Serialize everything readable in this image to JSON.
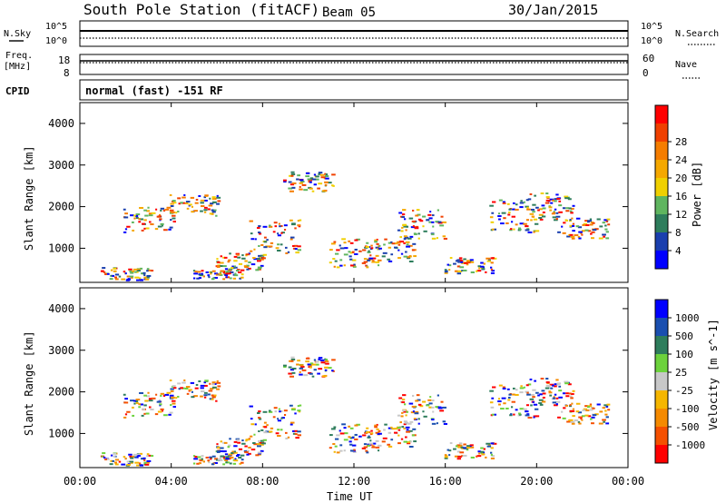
{
  "header": {
    "station": "South Pole Station (fitACF)",
    "beam": "Beam 05",
    "date": "30/Jan/2015"
  },
  "left_labels": {
    "nsky": "N.Sky",
    "freq_line1": "Freq.",
    "freq_line2": "[MHz]",
    "cpid": "CPID"
  },
  "right_labels": {
    "nsearch": "N.Search",
    "nave": "Nave"
  },
  "cpid_text": "normal (fast) -151 RF",
  "colors": {
    "power": [
      "#0000ff",
      "#1a3fae",
      "#2e7d5c",
      "#5fb55f",
      "#f0d000",
      "#f5a800",
      "#f57d00",
      "#f04000",
      "#ff0000"
    ],
    "velocity": [
      "#ff0000",
      "#f55000",
      "#f58a00",
      "#f5b600",
      "#c8c8c8",
      "#6cd23c",
      "#2e7d5c",
      "#1a4fb0",
      "#0000ff"
    ]
  },
  "chart_data": [
    {
      "type": "line",
      "panel": "noise",
      "left_ticks": [
        "10^5",
        "10^0"
      ],
      "right_ticks": [
        "10^5",
        "10^0"
      ],
      "left_label": "N.Sky",
      "right_label": "N.Search"
    },
    {
      "type": "line",
      "panel": "frequency",
      "left_ticks": [
        "18",
        "8"
      ],
      "right_ticks": [
        "60",
        "0"
      ],
      "left_label": "Freq. [MHz]",
      "right_label": "Nave"
    },
    {
      "type": "heatmap",
      "panel": "power",
      "ylabel": "Slant Range [km]",
      "ylim": [
        180,
        4500
      ],
      "yticks": [
        1000,
        2000,
        3000,
        4000
      ],
      "xlim": [
        0,
        24
      ],
      "colorbar_label": "Power [dB]",
      "colorbar_ticks": [
        "4",
        "8",
        "12",
        "16",
        "20",
        "24",
        "28"
      ]
    },
    {
      "type": "heatmap",
      "panel": "velocity",
      "ylabel": "Slant Range [km]",
      "ylim": [
        180,
        4500
      ],
      "yticks": [
        1000,
        2000,
        3000,
        4000
      ],
      "xlim": [
        0,
        24
      ],
      "xlabel": "Time UT",
      "xticks": [
        "00:00",
        "04:00",
        "08:00",
        "12:00",
        "16:00",
        "20:00",
        "00:00"
      ],
      "colorbar_label": "Velocity [m s^-1]",
      "colorbar_ticks": [
        "1000",
        "500",
        "100",
        "25",
        "-25",
        "-100",
        "-500",
        "-1000"
      ]
    }
  ]
}
